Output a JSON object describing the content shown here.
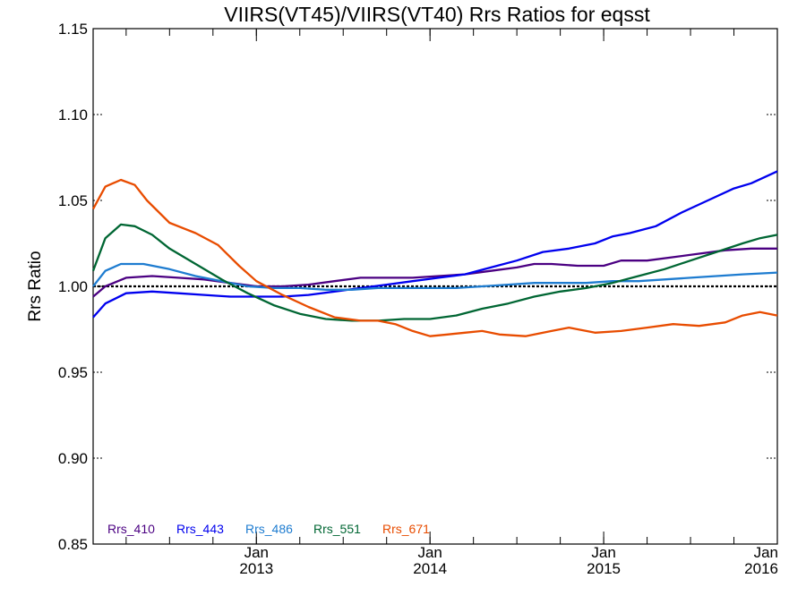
{
  "chart_data": {
    "type": "line",
    "title": "VIIRS(VT45)/VIIRS(VT40)  Rrs Ratios for eqsst",
    "ylabel": "Rrs Ratio",
    "xlabel": "",
    "xlim": [
      2012.06,
      2016.0
    ],
    "ylim": [
      0.85,
      1.15
    ],
    "y_ticks": [
      0.85,
      0.9,
      0.95,
      1.0,
      1.05,
      1.1,
      1.15
    ],
    "y_tick_labels": [
      "0.85",
      "0.90",
      "0.95",
      "1.00",
      "1.05",
      "1.10",
      "1.15"
    ],
    "x_ticks": [
      {
        "x": 2013.0,
        "month": "Jan",
        "year": "2013"
      },
      {
        "x": 2014.0,
        "month": "Jan",
        "year": "2014"
      },
      {
        "x": 2015.0,
        "month": "Jan",
        "year": "2015"
      },
      {
        "x": 2016.0,
        "month": "Jan",
        "year": "2016"
      }
    ],
    "reference_line": 1.0,
    "legend_position": "bottom-left",
    "series": [
      {
        "name": "Rrs_410",
        "color": "#4b0082",
        "x": [
          2012.06,
          2012.13,
          2012.25,
          2012.4,
          2012.55,
          2012.7,
          2012.85,
          2013.0,
          2013.15,
          2013.3,
          2013.45,
          2013.6,
          2013.75,
          2013.9,
          2014.05,
          2014.2,
          2014.35,
          2014.5,
          2014.6,
          2014.7,
          2014.85,
          2015.0,
          2015.1,
          2015.25,
          2015.4,
          2015.55,
          2015.7,
          2015.85,
          2016.0
        ],
        "y": [
          0.994,
          1.0,
          1.005,
          1.006,
          1.005,
          1.004,
          1.002,
          1.0,
          1.0,
          1.001,
          1.003,
          1.005,
          1.005,
          1.005,
          1.006,
          1.007,
          1.009,
          1.011,
          1.013,
          1.013,
          1.012,
          1.012,
          1.015,
          1.015,
          1.017,
          1.019,
          1.021,
          1.022,
          1.022
        ]
      },
      {
        "name": "Rrs_443",
        "color": "#0000ee",
        "x": [
          2012.06,
          2012.13,
          2012.25,
          2012.4,
          2012.55,
          2012.7,
          2012.85,
          2013.0,
          2013.15,
          2013.3,
          2013.45,
          2013.6,
          2013.75,
          2013.9,
          2014.05,
          2014.2,
          2014.35,
          2014.5,
          2014.65,
          2014.8,
          2014.95,
          2015.05,
          2015.15,
          2015.3,
          2015.45,
          2015.6,
          2015.75,
          2015.85,
          2016.0
        ],
        "y": [
          0.982,
          0.99,
          0.996,
          0.997,
          0.996,
          0.995,
          0.994,
          0.994,
          0.994,
          0.995,
          0.997,
          0.999,
          1.001,
          1.003,
          1.005,
          1.007,
          1.011,
          1.015,
          1.02,
          1.022,
          1.025,
          1.029,
          1.031,
          1.035,
          1.043,
          1.05,
          1.057,
          1.06,
          1.067
        ]
      },
      {
        "name": "Rrs_486",
        "color": "#1e7cd0",
        "x": [
          2012.06,
          2012.13,
          2012.22,
          2012.35,
          2012.5,
          2012.65,
          2012.8,
          2012.95,
          2013.1,
          2013.25,
          2013.4,
          2013.55,
          2013.7,
          2013.85,
          2014.0,
          2014.15,
          2014.3,
          2014.45,
          2014.6,
          2014.75,
          2014.9,
          2015.05,
          2015.2,
          2015.35,
          2015.5,
          2015.65,
          2015.8,
          2016.0
        ],
        "y": [
          1.0,
          1.009,
          1.013,
          1.013,
          1.01,
          1.006,
          1.003,
          1.0,
          0.999,
          0.999,
          0.998,
          0.998,
          0.999,
          0.999,
          0.999,
          0.999,
          1.0,
          1.001,
          1.002,
          1.002,
          1.002,
          1.003,
          1.003,
          1.004,
          1.005,
          1.006,
          1.007,
          1.008
        ]
      },
      {
        "name": "Rrs_551",
        "color": "#006633",
        "x": [
          2012.06,
          2012.13,
          2012.22,
          2012.3,
          2012.4,
          2012.5,
          2012.65,
          2012.8,
          2012.95,
          2013.1,
          2013.25,
          2013.4,
          2013.55,
          2013.7,
          2013.85,
          2014.0,
          2014.15,
          2014.3,
          2014.45,
          2014.6,
          2014.75,
          2014.9,
          2015.05,
          2015.2,
          2015.35,
          2015.5,
          2015.65,
          2015.8,
          2015.9,
          2016.0
        ],
        "y": [
          1.009,
          1.028,
          1.036,
          1.035,
          1.03,
          1.022,
          1.013,
          1.004,
          0.996,
          0.989,
          0.984,
          0.981,
          0.98,
          0.98,
          0.981,
          0.981,
          0.983,
          0.987,
          0.99,
          0.994,
          0.997,
          0.999,
          1.002,
          1.006,
          1.01,
          1.015,
          1.02,
          1.025,
          1.028,
          1.03
        ]
      },
      {
        "name": "Rrs_671",
        "color": "#e84c00",
        "x": [
          2012.06,
          2012.13,
          2012.22,
          2012.3,
          2012.37,
          2012.5,
          2012.65,
          2012.78,
          2012.9,
          2013.0,
          2013.15,
          2013.3,
          2013.45,
          2013.6,
          2013.7,
          2013.8,
          2013.9,
          2014.0,
          2014.1,
          2014.2,
          2014.3,
          2014.4,
          2014.55,
          2014.7,
          2014.8,
          2014.95,
          2015.1,
          2015.25,
          2015.4,
          2015.55,
          2015.7,
          2015.8,
          2015.9,
          2016.0
        ],
        "y": [
          1.045,
          1.058,
          1.062,
          1.059,
          1.05,
          1.037,
          1.031,
          1.024,
          1.012,
          1.003,
          0.995,
          0.988,
          0.982,
          0.98,
          0.98,
          0.978,
          0.974,
          0.971,
          0.972,
          0.973,
          0.974,
          0.972,
          0.971,
          0.974,
          0.976,
          0.973,
          0.974,
          0.976,
          0.978,
          0.977,
          0.979,
          0.983,
          0.985,
          0.983
        ]
      }
    ]
  }
}
